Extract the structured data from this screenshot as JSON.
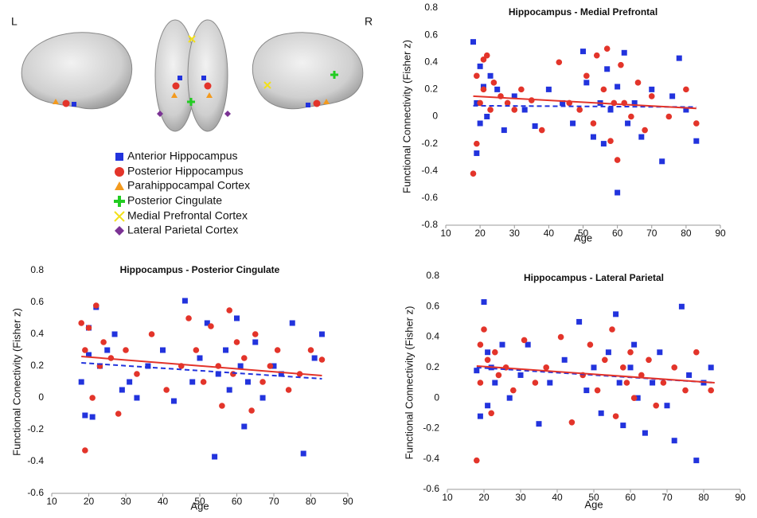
{
  "brain_panel": {
    "left_label": "L",
    "right_label": "R",
    "legend": [
      "Anterior  Hippocampus",
      "Posterior Hippocampus",
      "Parahippocampal Cortex",
      "Posterior Cingulate",
      "Medial  Prefrontal Cortex",
      "Lateral Parietal Cortex"
    ]
  },
  "chart_data": [
    {
      "type": "scatter",
      "title": "Hippocampus - Medial Prefrontal",
      "x_label": "Age",
      "y_label": "Functional Connectivity (Fisher z)",
      "xlim": [
        10,
        90
      ],
      "xticks": [
        10,
        20,
        30,
        40,
        50,
        60,
        70,
        80,
        90
      ],
      "ylim": [
        -0.8,
        0.8
      ],
      "yticks": [
        -0.8,
        -0.6,
        -0.4,
        -0.2,
        0,
        0.2,
        0.4,
        0.6,
        0.8
      ],
      "series": [
        {
          "color": "#2233dd",
          "marker": "square",
          "x": [
            18,
            19,
            19,
            20,
            20,
            21,
            22,
            23,
            25,
            27,
            30,
            33,
            36,
            40,
            44,
            47,
            50,
            51,
            53,
            55,
            56,
            57,
            58,
            60,
            60,
            62,
            63,
            65,
            67,
            70,
            73,
            76,
            78,
            80,
            83
          ],
          "values": [
            0.55,
            -0.27,
            0.1,
            0.37,
            -0.05,
            0.22,
            0.0,
            0.3,
            0.2,
            -0.1,
            0.15,
            0.05,
            -0.07,
            0.2,
            0.1,
            -0.05,
            0.48,
            0.25,
            -0.15,
            0.1,
            -0.2,
            0.35,
            0.05,
            -0.56,
            0.22,
            0.47,
            -0.05,
            0.1,
            -0.15,
            0.2,
            -0.33,
            0.15,
            0.43,
            0.05,
            -0.18
          ]
        },
        {
          "color": "#e3342a",
          "marker": "circle",
          "x": [
            18,
            19,
            19,
            20,
            21,
            21,
            22,
            23,
            24,
            26,
            28,
            30,
            32,
            35,
            38,
            43,
            46,
            49,
            51,
            53,
            54,
            56,
            57,
            58,
            59,
            60,
            61,
            62,
            64,
            66,
            68,
            70,
            75,
            80,
            83
          ],
          "values": [
            -0.42,
            0.3,
            -0.2,
            0.1,
            0.42,
            0.2,
            0.45,
            0.05,
            0.25,
            0.15,
            0.1,
            0.05,
            0.2,
            0.12,
            -0.1,
            0.4,
            0.1,
            0.05,
            0.3,
            -0.05,
            0.45,
            0.2,
            0.5,
            -0.18,
            0.1,
            -0.32,
            0.38,
            0.1,
            0.0,
            0.25,
            -0.1,
            0.15,
            0.0,
            0.2,
            -0.05
          ]
        }
      ],
      "trend_lines": [
        {
          "color": "#2233dd",
          "dashed": true,
          "x": [
            18,
            83
          ],
          "values": [
            0.08,
            0.07
          ]
        },
        {
          "color": "#e3342a",
          "dashed": false,
          "x": [
            18,
            83
          ],
          "values": [
            0.15,
            0.06
          ]
        }
      ]
    },
    {
      "type": "scatter",
      "title": "Hippocampus - Posterior Cingulate",
      "x_label": "Age",
      "y_label": "Functional Conectivity (Fisher z)",
      "xlim": [
        10,
        90
      ],
      "xticks": [
        10,
        20,
        30,
        40,
        50,
        60,
        70,
        80,
        90
      ],
      "ylim": [
        -0.6,
        0.8
      ],
      "yticks": [
        -0.6,
        -0.4,
        -0.2,
        0,
        0.2,
        0.4,
        0.6,
        0.8
      ],
      "series": [
        {
          "color": "#2233dd",
          "marker": "square",
          "x": [
            18,
            19,
            20,
            20,
            21,
            22,
            23,
            25,
            27,
            29,
            31,
            33,
            36,
            40,
            43,
            46,
            48,
            50,
            52,
            54,
            55,
            57,
            58,
            60,
            61,
            62,
            63,
            65,
            67,
            70,
            72,
            75,
            78,
            81,
            83
          ],
          "values": [
            0.1,
            -0.11,
            0.44,
            0.27,
            -0.12,
            0.57,
            0.2,
            0.3,
            0.4,
            0.05,
            0.1,
            0.0,
            0.2,
            0.3,
            -0.02,
            0.61,
            0.1,
            0.25,
            0.47,
            -0.37,
            0.15,
            0.3,
            0.05,
            0.5,
            0.2,
            -0.18,
            0.1,
            0.35,
            0.0,
            0.2,
            0.15,
            0.47,
            -0.35,
            0.25,
            0.4
          ]
        },
        {
          "color": "#e3342a",
          "marker": "circle",
          "x": [
            18,
            19,
            19,
            20,
            21,
            22,
            23,
            24,
            26,
            28,
            30,
            33,
            37,
            41,
            45,
            47,
            49,
            51,
            53,
            55,
            56,
            58,
            59,
            60,
            62,
            64,
            65,
            67,
            69,
            71,
            74,
            77,
            80,
            83
          ],
          "values": [
            0.47,
            -0.33,
            0.3,
            0.44,
            0.0,
            0.58,
            0.2,
            0.35,
            0.25,
            -0.1,
            0.3,
            0.15,
            0.4,
            0.05,
            0.2,
            0.5,
            0.3,
            0.1,
            0.45,
            0.2,
            -0.05,
            0.55,
            0.15,
            0.35,
            0.25,
            -0.08,
            0.4,
            0.1,
            0.2,
            0.3,
            0.05,
            0.15,
            0.3,
            0.24
          ]
        }
      ],
      "trend_lines": [
        {
          "color": "#2233dd",
          "dashed": true,
          "x": [
            18,
            83
          ],
          "values": [
            0.22,
            0.12
          ]
        },
        {
          "color": "#e3342a",
          "dashed": false,
          "x": [
            18,
            83
          ],
          "values": [
            0.26,
            0.14
          ]
        }
      ]
    },
    {
      "type": "scatter",
      "title": "Hippocampus - Lateral Parietal",
      "x_label": "Age",
      "y_label": "Functional Connectivity (Fisher z)",
      "xlim": [
        10,
        90
      ],
      "xticks": [
        10,
        20,
        30,
        40,
        50,
        60,
        70,
        80,
        90
      ],
      "ylim": [
        -0.6,
        0.8
      ],
      "yticks": [
        -0.6,
        -0.4,
        -0.2,
        0,
        0.2,
        0.4,
        0.6,
        0.8
      ],
      "series": [
        {
          "color": "#2233dd",
          "marker": "square",
          "x": [
            18,
            19,
            20,
            21,
            21,
            22,
            23,
            25,
            27,
            30,
            32,
            35,
            38,
            42,
            46,
            48,
            50,
            52,
            54,
            56,
            57,
            58,
            60,
            61,
            62,
            64,
            66,
            68,
            70,
            72,
            74,
            76,
            78,
            80,
            82
          ],
          "values": [
            0.18,
            -0.12,
            0.63,
            0.3,
            -0.05,
            0.2,
            0.1,
            0.35,
            0.0,
            0.15,
            0.35,
            -0.17,
            0.1,
            0.25,
            0.5,
            0.05,
            0.2,
            -0.1,
            0.3,
            0.55,
            0.1,
            -0.18,
            0.2,
            0.35,
            0.0,
            -0.23,
            0.1,
            0.3,
            -0.05,
            -0.28,
            0.6,
            0.15,
            -0.41,
            0.1,
            0.2
          ]
        },
        {
          "color": "#e3342a",
          "marker": "circle",
          "x": [
            18,
            19,
            19,
            20,
            21,
            22,
            23,
            24,
            26,
            28,
            31,
            34,
            37,
            41,
            44,
            47,
            49,
            51,
            53,
            55,
            56,
            58,
            59,
            60,
            61,
            63,
            65,
            67,
            69,
            72,
            75,
            78,
            82
          ],
          "values": [
            -0.41,
            0.35,
            0.1,
            0.45,
            0.25,
            -0.1,
            0.3,
            0.15,
            0.2,
            0.05,
            0.38,
            0.1,
            0.2,
            0.4,
            -0.16,
            0.15,
            0.35,
            0.05,
            0.25,
            0.45,
            -0.12,
            0.2,
            0.1,
            0.3,
            0.0,
            0.15,
            0.25,
            -0.05,
            0.1,
            0.2,
            0.05,
            0.3,
            0.05
          ]
        }
      ],
      "trend_lines": [
        {
          "color": "#2233dd",
          "dashed": true,
          "x": [
            18,
            83
          ],
          "values": [
            0.2,
            0.1
          ]
        },
        {
          "color": "#e3342a",
          "dashed": false,
          "x": [
            18,
            83
          ],
          "values": [
            0.21,
            0.1
          ]
        }
      ]
    }
  ]
}
